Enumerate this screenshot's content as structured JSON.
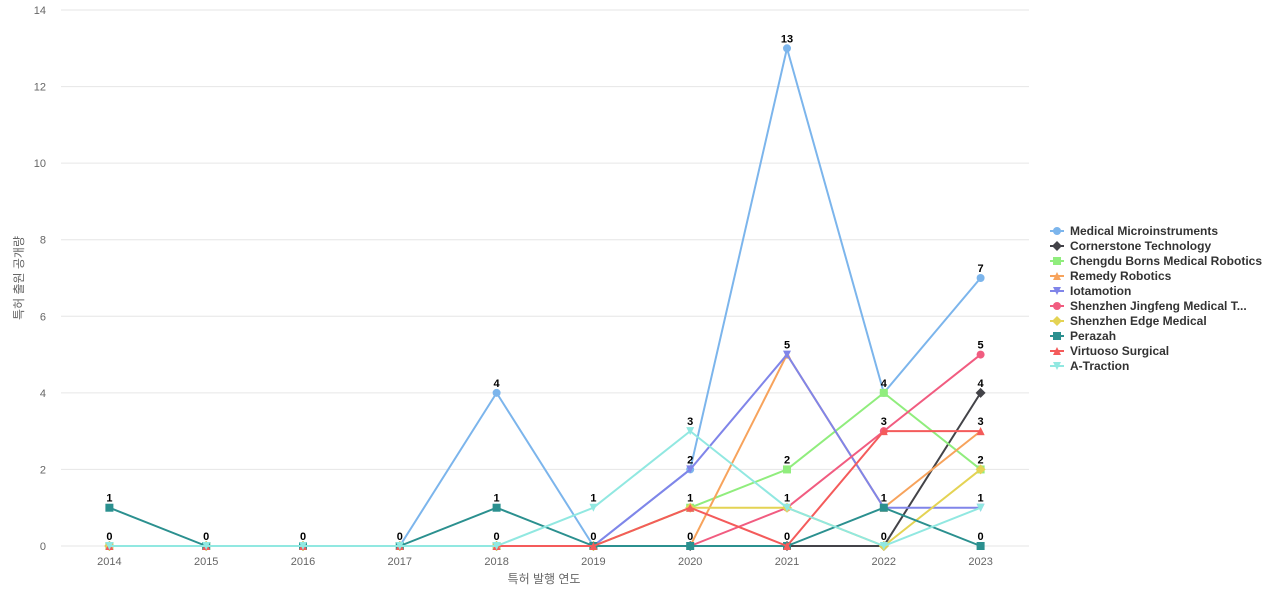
{
  "chart_data": {
    "type": "line",
    "x": [
      "2014",
      "2015",
      "2016",
      "2017",
      "2018",
      "2019",
      "2020",
      "2021",
      "2022",
      "2023"
    ],
    "xlabel": "특허 발행 연도",
    "ylabel": "특허 출원 공개량",
    "ylim": [
      0,
      14
    ],
    "yticks": [
      "0",
      "2",
      "4",
      "6",
      "8",
      "10",
      "12",
      "14"
    ],
    "grid": true,
    "legend_position": "right",
    "series": [
      {
        "name": "Medical Microinstruments",
        "color": "#7cb5ec",
        "marker": "circle",
        "values": [
          0,
          0,
          0,
          0,
          4,
          0,
          2,
          13,
          4,
          7
        ]
      },
      {
        "name": "Cornerstone Technology",
        "color": "#434348",
        "marker": "diamond",
        "values": [
          0,
          0,
          0,
          0,
          0,
          0,
          0,
          0,
          0,
          4
        ]
      },
      {
        "name": "Chengdu Borns Medical Robotics",
        "color": "#90ed7d",
        "marker": "square",
        "values": [
          0,
          0,
          0,
          0,
          0,
          0,
          1,
          2,
          4,
          2
        ]
      },
      {
        "name": "Remedy Robotics",
        "color": "#f7a35c",
        "marker": "triangle",
        "values": [
          0,
          0,
          0,
          0,
          0,
          0,
          0,
          5,
          1,
          3
        ]
      },
      {
        "name": "Iotamotion",
        "color": "#8085e9",
        "marker": "triangle-down",
        "values": [
          0,
          0,
          0,
          0,
          0,
          0,
          2,
          5,
          1,
          1
        ]
      },
      {
        "name": "Shenzhen Jingfeng Medical T...",
        "color": "#f15c80",
        "marker": "circle",
        "values": [
          0,
          0,
          0,
          0,
          0,
          0,
          0,
          1,
          3,
          5
        ]
      },
      {
        "name": "Shenzhen Edge Medical",
        "color": "#e4d354",
        "marker": "diamond",
        "values": [
          0,
          0,
          0,
          0,
          0,
          0,
          1,
          1,
          0,
          2
        ]
      },
      {
        "name": "Perazah",
        "color": "#2b908f",
        "marker": "square",
        "values": [
          1,
          0,
          0,
          0,
          1,
          0,
          0,
          0,
          1,
          0
        ]
      },
      {
        "name": "Virtuoso Surgical",
        "color": "#f45b5b",
        "marker": "triangle",
        "values": [
          0,
          0,
          0,
          0,
          0,
          0,
          1,
          0,
          3,
          3
        ]
      },
      {
        "name": "A-Traction",
        "color": "#91e8e1",
        "marker": "triangle-down",
        "values": [
          0,
          0,
          0,
          0,
          0,
          1,
          3,
          1,
          0,
          1
        ]
      }
    ],
    "data_labels": [
      {
        "series": "Perazah",
        "x": "2014",
        "value": "1"
      },
      {
        "series": "Medical Microinstruments",
        "x": "2014",
        "value": "0"
      },
      {
        "series": "Medical Microinstruments",
        "x": "2015",
        "value": "0"
      },
      {
        "series": "Medical Microinstruments",
        "x": "2016",
        "value": "0"
      },
      {
        "series": "Medical Microinstruments",
        "x": "2017",
        "value": "0"
      },
      {
        "series": "Medical Microinstruments",
        "x": "2018",
        "value": "4"
      },
      {
        "series": "Perazah",
        "x": "2018",
        "value": "1"
      },
      {
        "series": "Virtuoso Surgical",
        "x": "2018",
        "value": "0"
      },
      {
        "series": "A-Traction",
        "x": "2019",
        "value": "1"
      },
      {
        "series": "Medical Microinstruments",
        "x": "2019",
        "value": "0"
      },
      {
        "series": "A-Traction",
        "x": "2020",
        "value": "3"
      },
      {
        "series": "Medical Microinstruments",
        "x": "2020",
        "value": "2"
      },
      {
        "series": "Virtuoso Surgical",
        "x": "2020",
        "value": "1"
      },
      {
        "series": "Perazah",
        "x": "2020",
        "value": "0"
      },
      {
        "series": "Medical Microinstruments",
        "x": "2021",
        "value": "13"
      },
      {
        "series": "Iotamotion",
        "x": "2021",
        "value": "5"
      },
      {
        "series": "Chengdu Borns Medical Robotics",
        "x": "2021",
        "value": "2"
      },
      {
        "series": "A-Traction",
        "x": "2021",
        "value": "1"
      },
      {
        "series": "Virtuoso Surgical",
        "x": "2021",
        "value": "0"
      },
      {
        "series": "Medical Microinstruments",
        "x": "2022",
        "value": "4"
      },
      {
        "series": "Virtuoso Surgical",
        "x": "2022",
        "value": "3"
      },
      {
        "series": "Perazah",
        "x": "2022",
        "value": "1"
      },
      {
        "series": "A-Traction",
        "x": "2022",
        "value": "0"
      },
      {
        "series": "Medical Microinstruments",
        "x": "2023",
        "value": "7"
      },
      {
        "series": "Shenzhen Jingfeng Medical T...",
        "x": "2023",
        "value": "5"
      },
      {
        "series": "Cornerstone Technology",
        "x": "2023",
        "value": "4"
      },
      {
        "series": "Virtuoso Surgical",
        "x": "2023",
        "value": "3"
      },
      {
        "series": "Shenzhen Edge Medical",
        "x": "2023",
        "value": "2"
      },
      {
        "series": "A-Traction",
        "x": "2023",
        "value": "1"
      },
      {
        "series": "Perazah",
        "x": "2023",
        "value": "0"
      }
    ]
  }
}
